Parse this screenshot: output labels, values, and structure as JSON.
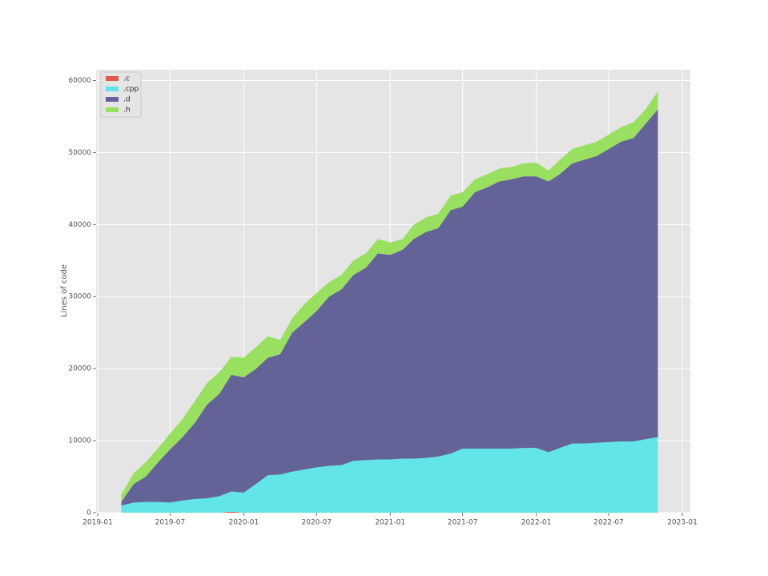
{
  "chart_data": {
    "type": "stackedarea",
    "ylabel": "Lines of code",
    "x": [
      "2019-03",
      "2019-04",
      "2019-05",
      "2019-06",
      "2019-07",
      "2019-08",
      "2019-09",
      "2019-10",
      "2019-11",
      "2019-12",
      "2020-01",
      "2020-02",
      "2020-03",
      "2020-04",
      "2020-05",
      "2020-06",
      "2020-07",
      "2020-08",
      "2020-09",
      "2020-10",
      "2020-11",
      "2020-12",
      "2021-01",
      "2021-02",
      "2021-03",
      "2021-04",
      "2021-05",
      "2021-06",
      "2021-07",
      "2021-08",
      "2021-09",
      "2021-10",
      "2021-11",
      "2021-12",
      "2022-01",
      "2022-02",
      "2022-03",
      "2022-04",
      "2022-05",
      "2022-06",
      "2022-07",
      "2022-08",
      "2022-09",
      "2022-10",
      "2022-11"
    ],
    "series": [
      {
        "name": ".c",
        "color": "#e05a52",
        "values": [
          0,
          0,
          0,
          0,
          0,
          0,
          0,
          0,
          0,
          150,
          0,
          0,
          0,
          0,
          0,
          0,
          0,
          0,
          0,
          0,
          0,
          0,
          0,
          0,
          0,
          0,
          0,
          0,
          0,
          0,
          0,
          0,
          0,
          0,
          0,
          0,
          0,
          0,
          0,
          0,
          0,
          0,
          0,
          0,
          0
        ]
      },
      {
        "name": ".cpp",
        "color": "#62e5e6",
        "values": [
          1000,
          1400,
          1500,
          1500,
          1400,
          1700,
          1900,
          2000,
          2300,
          2800,
          2800,
          4000,
          5200,
          5300,
          5700,
          6000,
          6300,
          6500,
          6600,
          7200,
          7300,
          7400,
          7400,
          7500,
          7500,
          7600,
          7800,
          8200,
          8900,
          8900,
          8900,
          8900,
          8900,
          9000,
          9000,
          8400,
          9000,
          9600,
          9600,
          9700,
          9800,
          9900,
          9900,
          10200,
          10500
        ]
      },
      {
        "name": ".d",
        "color": "#636397",
        "values": [
          500,
          2600,
          3500,
          5500,
          7400,
          8800,
          10600,
          13000,
          14200,
          16200,
          16000,
          16000,
          16300,
          16700,
          19300,
          20500,
          21700,
          23500,
          24400,
          25800,
          26700,
          28600,
          28400,
          29000,
          30500,
          31400,
          31700,
          33800,
          33600,
          35600,
          36300,
          37100,
          37400,
          37700,
          37700,
          37600,
          38000,
          38900,
          39400,
          39800,
          40700,
          41600,
          42100,
          43800,
          45500
        ]
      },
      {
        "name": ".h",
        "color": "#99e060",
        "values": [
          1000,
          1500,
          2000,
          2000,
          2200,
          2500,
          3000,
          3000,
          3000,
          2500,
          2700,
          3000,
          3000,
          2000,
          2000,
          2500,
          2500,
          2000,
          2000,
          2000,
          2000,
          2000,
          1700,
          1500,
          2000,
          2000,
          2000,
          2000,
          2000,
          1800,
          1800,
          1800,
          1700,
          1800,
          1900,
          1500,
          2000,
          2000,
          2000,
          2000,
          2000,
          2000,
          2200,
          2000,
          2500
        ]
      }
    ],
    "xlim": [
      "2018-12-28",
      "2023-01-21"
    ],
    "xticks": [
      {
        "value": "2019-01-01",
        "label": "2019-01"
      },
      {
        "value": "2019-07-01",
        "label": "2019-07"
      },
      {
        "value": "2020-01-01",
        "label": "2020-01"
      },
      {
        "value": "2020-07-01",
        "label": "2020-07"
      },
      {
        "value": "2021-01-01",
        "label": "2021-01"
      },
      {
        "value": "2021-07-01",
        "label": "2021-07"
      },
      {
        "value": "2022-01-01",
        "label": "2022-01"
      },
      {
        "value": "2022-07-01",
        "label": "2022-07"
      },
      {
        "value": "2023-01-01",
        "label": "2023-01"
      }
    ],
    "ylim": [
      0,
      61500
    ],
    "yticks": [
      0,
      10000,
      20000,
      30000,
      40000,
      50000,
      60000
    ],
    "grid": true,
    "legend": "upper left",
    "background": "#e5e5e5"
  }
}
